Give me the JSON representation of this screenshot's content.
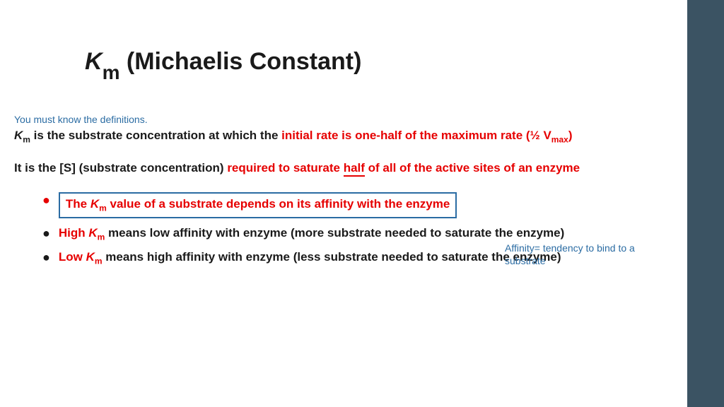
{
  "colors": {
    "sidebar": "#3b5363",
    "text": "#1a1a1a",
    "red": "#e60000",
    "blue": "#2b6ca3",
    "background": "#ffffff"
  },
  "title": {
    "symbol": "K",
    "subscript": "m",
    "rest": " (Michaelis Constant)"
  },
  "note": "You must know the definitions.",
  "para1": {
    "lead_symbol": "K",
    "lead_sub": "m",
    "black": " is the substrate concentration at which the ",
    "red1": "initial rate is one-half of the maximum rate (½ V",
    "red_sub": "max",
    "red2": ")"
  },
  "para2": {
    "black": "It is the [S] (substrate concentration)  ",
    "red1": "required to saturate ",
    "red_underlined": "half",
    "red2": " of all of the active sites of an enzyme"
  },
  "bullets": [
    {
      "boxed": true,
      "dot_color": "red",
      "parts": {
        "p1": "The ",
        "sym": "K",
        "sub": "m",
        "p2": " value of a substrate depends on its affinity with the enzyme"
      }
    },
    {
      "boxed": false,
      "dot_color": "black",
      "parts": {
        "red_lead": "High ",
        "sym": "K",
        "sub": "m",
        "black": " means low affinity with enzyme (more substrate needed to saturate the enzyme)"
      }
    },
    {
      "boxed": false,
      "dot_color": "black",
      "parts": {
        "red_lead": "Low ",
        "sym": "K",
        "sub": "m",
        "black": " means high affinity with enzyme (less substrate needed to saturate the enzyme)"
      }
    }
  ],
  "side_note": "Affinity= tendency to bind to a substrate"
}
